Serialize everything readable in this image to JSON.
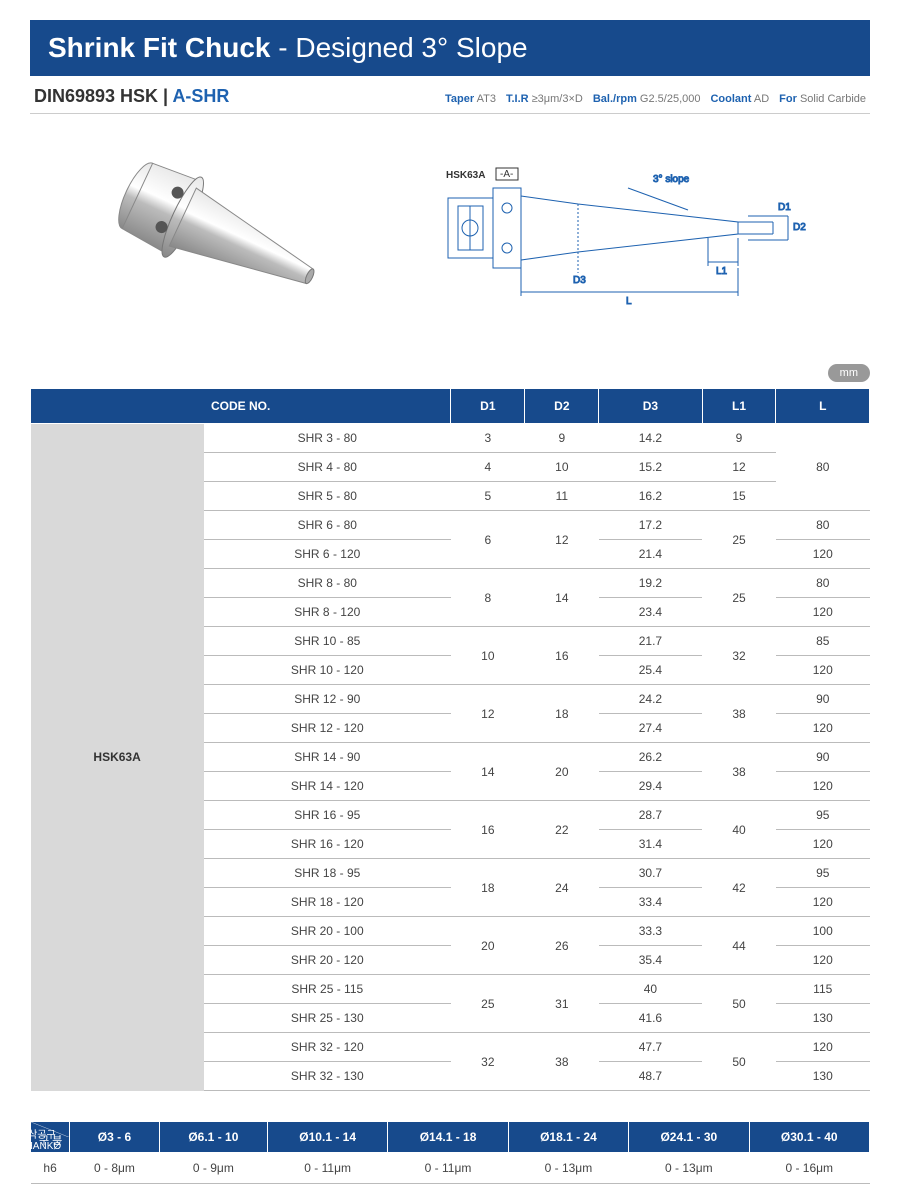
{
  "header": {
    "title_bold": "Shrink Fit Chuck",
    "title_light": " - Designed 3° Slope",
    "subtitle_prefix": "DIN69893 HSK | ",
    "subtitle_accent": "A-SHR",
    "specs": [
      {
        "label": "Taper",
        "value": "AT3"
      },
      {
        "label": "T.I.R",
        "value": "≥3μm/3×D"
      },
      {
        "label": "Bal./rpm",
        "value": "G2.5/25,000"
      },
      {
        "label": "Coolant",
        "value": "AD"
      },
      {
        "label": "For",
        "value": "Solid Carbide"
      }
    ],
    "unit_pill": "mm"
  },
  "diagram": {
    "shank_label": "HSK63A",
    "datum": "-A-",
    "slope_label": "3° slope",
    "dims": [
      "D1",
      "D2",
      "D3",
      "L1",
      "L"
    ]
  },
  "spec_table": {
    "headers": [
      "CODE NO.",
      "D1",
      "D2",
      "D3",
      "L1",
      "L"
    ],
    "group_label": "HSK63A",
    "groups": [
      {
        "d1": "3",
        "d2": "9",
        "rows": [
          {
            "code": "SHR 3 - 80",
            "d3": "14.2",
            "l1": "9",
            "l": "80",
            "l_span": 3
          }
        ]
      },
      {
        "d1": "4",
        "d2": "10",
        "rows": [
          {
            "code": "SHR 4 - 80",
            "d3": "15.2",
            "l1": "12"
          }
        ]
      },
      {
        "d1": "5",
        "d2": "11",
        "rows": [
          {
            "code": "SHR 5 - 80",
            "d3": "16.2",
            "l1": "15"
          }
        ]
      },
      {
        "d1": "6",
        "d2": "12",
        "l1": "25",
        "rows": [
          {
            "code": "SHR 6 - 80",
            "d3": "17.2",
            "l": "80"
          },
          {
            "code": "SHR 6 - 120",
            "d3": "21.4",
            "l": "120"
          }
        ]
      },
      {
        "d1": "8",
        "d2": "14",
        "l1": "25",
        "rows": [
          {
            "code": "SHR 8 - 80",
            "d3": "19.2",
            "l": "80"
          },
          {
            "code": "SHR 8 - 120",
            "d3": "23.4",
            "l": "120"
          }
        ]
      },
      {
        "d1": "10",
        "d2": "16",
        "l1": "32",
        "rows": [
          {
            "code": "SHR 10 - 85",
            "d3": "21.7",
            "l": "85"
          },
          {
            "code": "SHR 10 - 120",
            "d3": "25.4",
            "l": "120"
          }
        ]
      },
      {
        "d1": "12",
        "d2": "18",
        "l1": "38",
        "rows": [
          {
            "code": "SHR 12 - 90",
            "d3": "24.2",
            "l": "90"
          },
          {
            "code": "SHR 12 - 120",
            "d3": "27.4",
            "l": "120"
          }
        ]
      },
      {
        "d1": "14",
        "d2": "20",
        "l1": "38",
        "rows": [
          {
            "code": "SHR 14 - 90",
            "d3": "26.2",
            "l": "90"
          },
          {
            "code": "SHR 14 - 120",
            "d3": "29.4",
            "l": "120"
          }
        ]
      },
      {
        "d1": "16",
        "d2": "22",
        "l1": "40",
        "rows": [
          {
            "code": "SHR 16 - 95",
            "d3": "28.7",
            "l": "95"
          },
          {
            "code": "SHR 16 - 120",
            "d3": "31.4",
            "l": "120"
          }
        ]
      },
      {
        "d1": "18",
        "d2": "24",
        "l1": "42",
        "rows": [
          {
            "code": "SHR 18 - 95",
            "d3": "30.7",
            "l": "95"
          },
          {
            "code": "SHR 18 - 120",
            "d3": "33.4",
            "l": "120"
          }
        ]
      },
      {
        "d1": "20",
        "d2": "26",
        "l1": "44",
        "rows": [
          {
            "code": "SHR 20 - 100",
            "d3": "33.3",
            "l": "100"
          },
          {
            "code": "SHR 20 - 120",
            "d3": "35.4",
            "l": "120"
          }
        ]
      },
      {
        "d1": "25",
        "d2": "31",
        "l1": "50",
        "rows": [
          {
            "code": "SHR 25 - 115",
            "d3": "40",
            "l": "115"
          },
          {
            "code": "SHR 25 - 130",
            "d3": "41.6",
            "l": "130"
          }
        ]
      },
      {
        "d1": "32",
        "d2": "38",
        "l1": "50",
        "rows": [
          {
            "code": "SHR 32 - 120",
            "d3": "47.7",
            "l": "120"
          },
          {
            "code": "SHR 32 - 130",
            "d3": "48.7",
            "l": "130"
          }
        ]
      }
    ]
  },
  "tolerance_table": {
    "corner_top": "절삭공구SHANKØ",
    "corner_bot": "구 분",
    "cols": [
      "Ø3 - 6",
      "Ø6.1 - 10",
      "Ø10.1 - 14",
      "Ø14.1 - 18",
      "Ø18.1 - 24",
      "Ø24.1 - 30",
      "Ø30.1 - 40"
    ],
    "row_label": "h6",
    "row_vals": [
      "0 - 8μm",
      "0 - 9μm",
      "0 - 11μm",
      "0 - 11μm",
      "0 - 13μm",
      "0 - 13μm",
      "0 - 16μm"
    ]
  },
  "colors": {
    "brand": "#174a8c",
    "grey": "#d9d9d9"
  }
}
